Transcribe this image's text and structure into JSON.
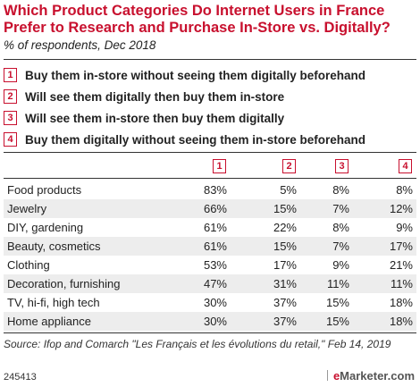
{
  "header": {
    "title": "Which Product Categories Do Internet Users in France Prefer to Research and Purchase In-Store vs. Digitally?",
    "subtitle": "% of respondents, Dec 2018"
  },
  "chart_data": {
    "type": "table",
    "legend": [
      {
        "num": "1",
        "label": "Buy them in-store without seeing them digitally beforehand"
      },
      {
        "num": "2",
        "label": "Will see them digitally then buy them in-store"
      },
      {
        "num": "3",
        "label": "Will see them in-store then buy them digitally"
      },
      {
        "num": "4",
        "label": "Buy them digitally without seeing them in-store beforehand"
      }
    ],
    "columns": [
      "1",
      "2",
      "3",
      "4"
    ],
    "rows": [
      {
        "label": "Food products",
        "values": [
          "83%",
          "5%",
          "8%",
          "8%"
        ]
      },
      {
        "label": "Jewelry",
        "values": [
          "66%",
          "15%",
          "7%",
          "12%"
        ]
      },
      {
        "label": "DIY, gardening",
        "values": [
          "61%",
          "22%",
          "8%",
          "9%"
        ]
      },
      {
        "label": "Beauty, cosmetics",
        "values": [
          "61%",
          "15%",
          "7%",
          "17%"
        ]
      },
      {
        "label": "Clothing",
        "values": [
          "53%",
          "17%",
          "9%",
          "21%"
        ]
      },
      {
        "label": "Decoration, furnishing",
        "values": [
          "47%",
          "31%",
          "11%",
          "11%"
        ]
      },
      {
        "label": "TV, hi-fi, high tech",
        "values": [
          "30%",
          "37%",
          "15%",
          "18%"
        ]
      },
      {
        "label": "Home appliance",
        "values": [
          "30%",
          "37%",
          "15%",
          "18%"
        ]
      }
    ]
  },
  "footer": {
    "source": "Source: Ifop and Comarch \"Les Français et les évolutions du retail,\" Feb 14, 2019",
    "id": "245413",
    "brand_prefix": "e",
    "brand_rest": "Marketer",
    "brand_suffix": ".com"
  },
  "colors": {
    "accent": "#c8102e",
    "row_shade": "#ededed"
  }
}
